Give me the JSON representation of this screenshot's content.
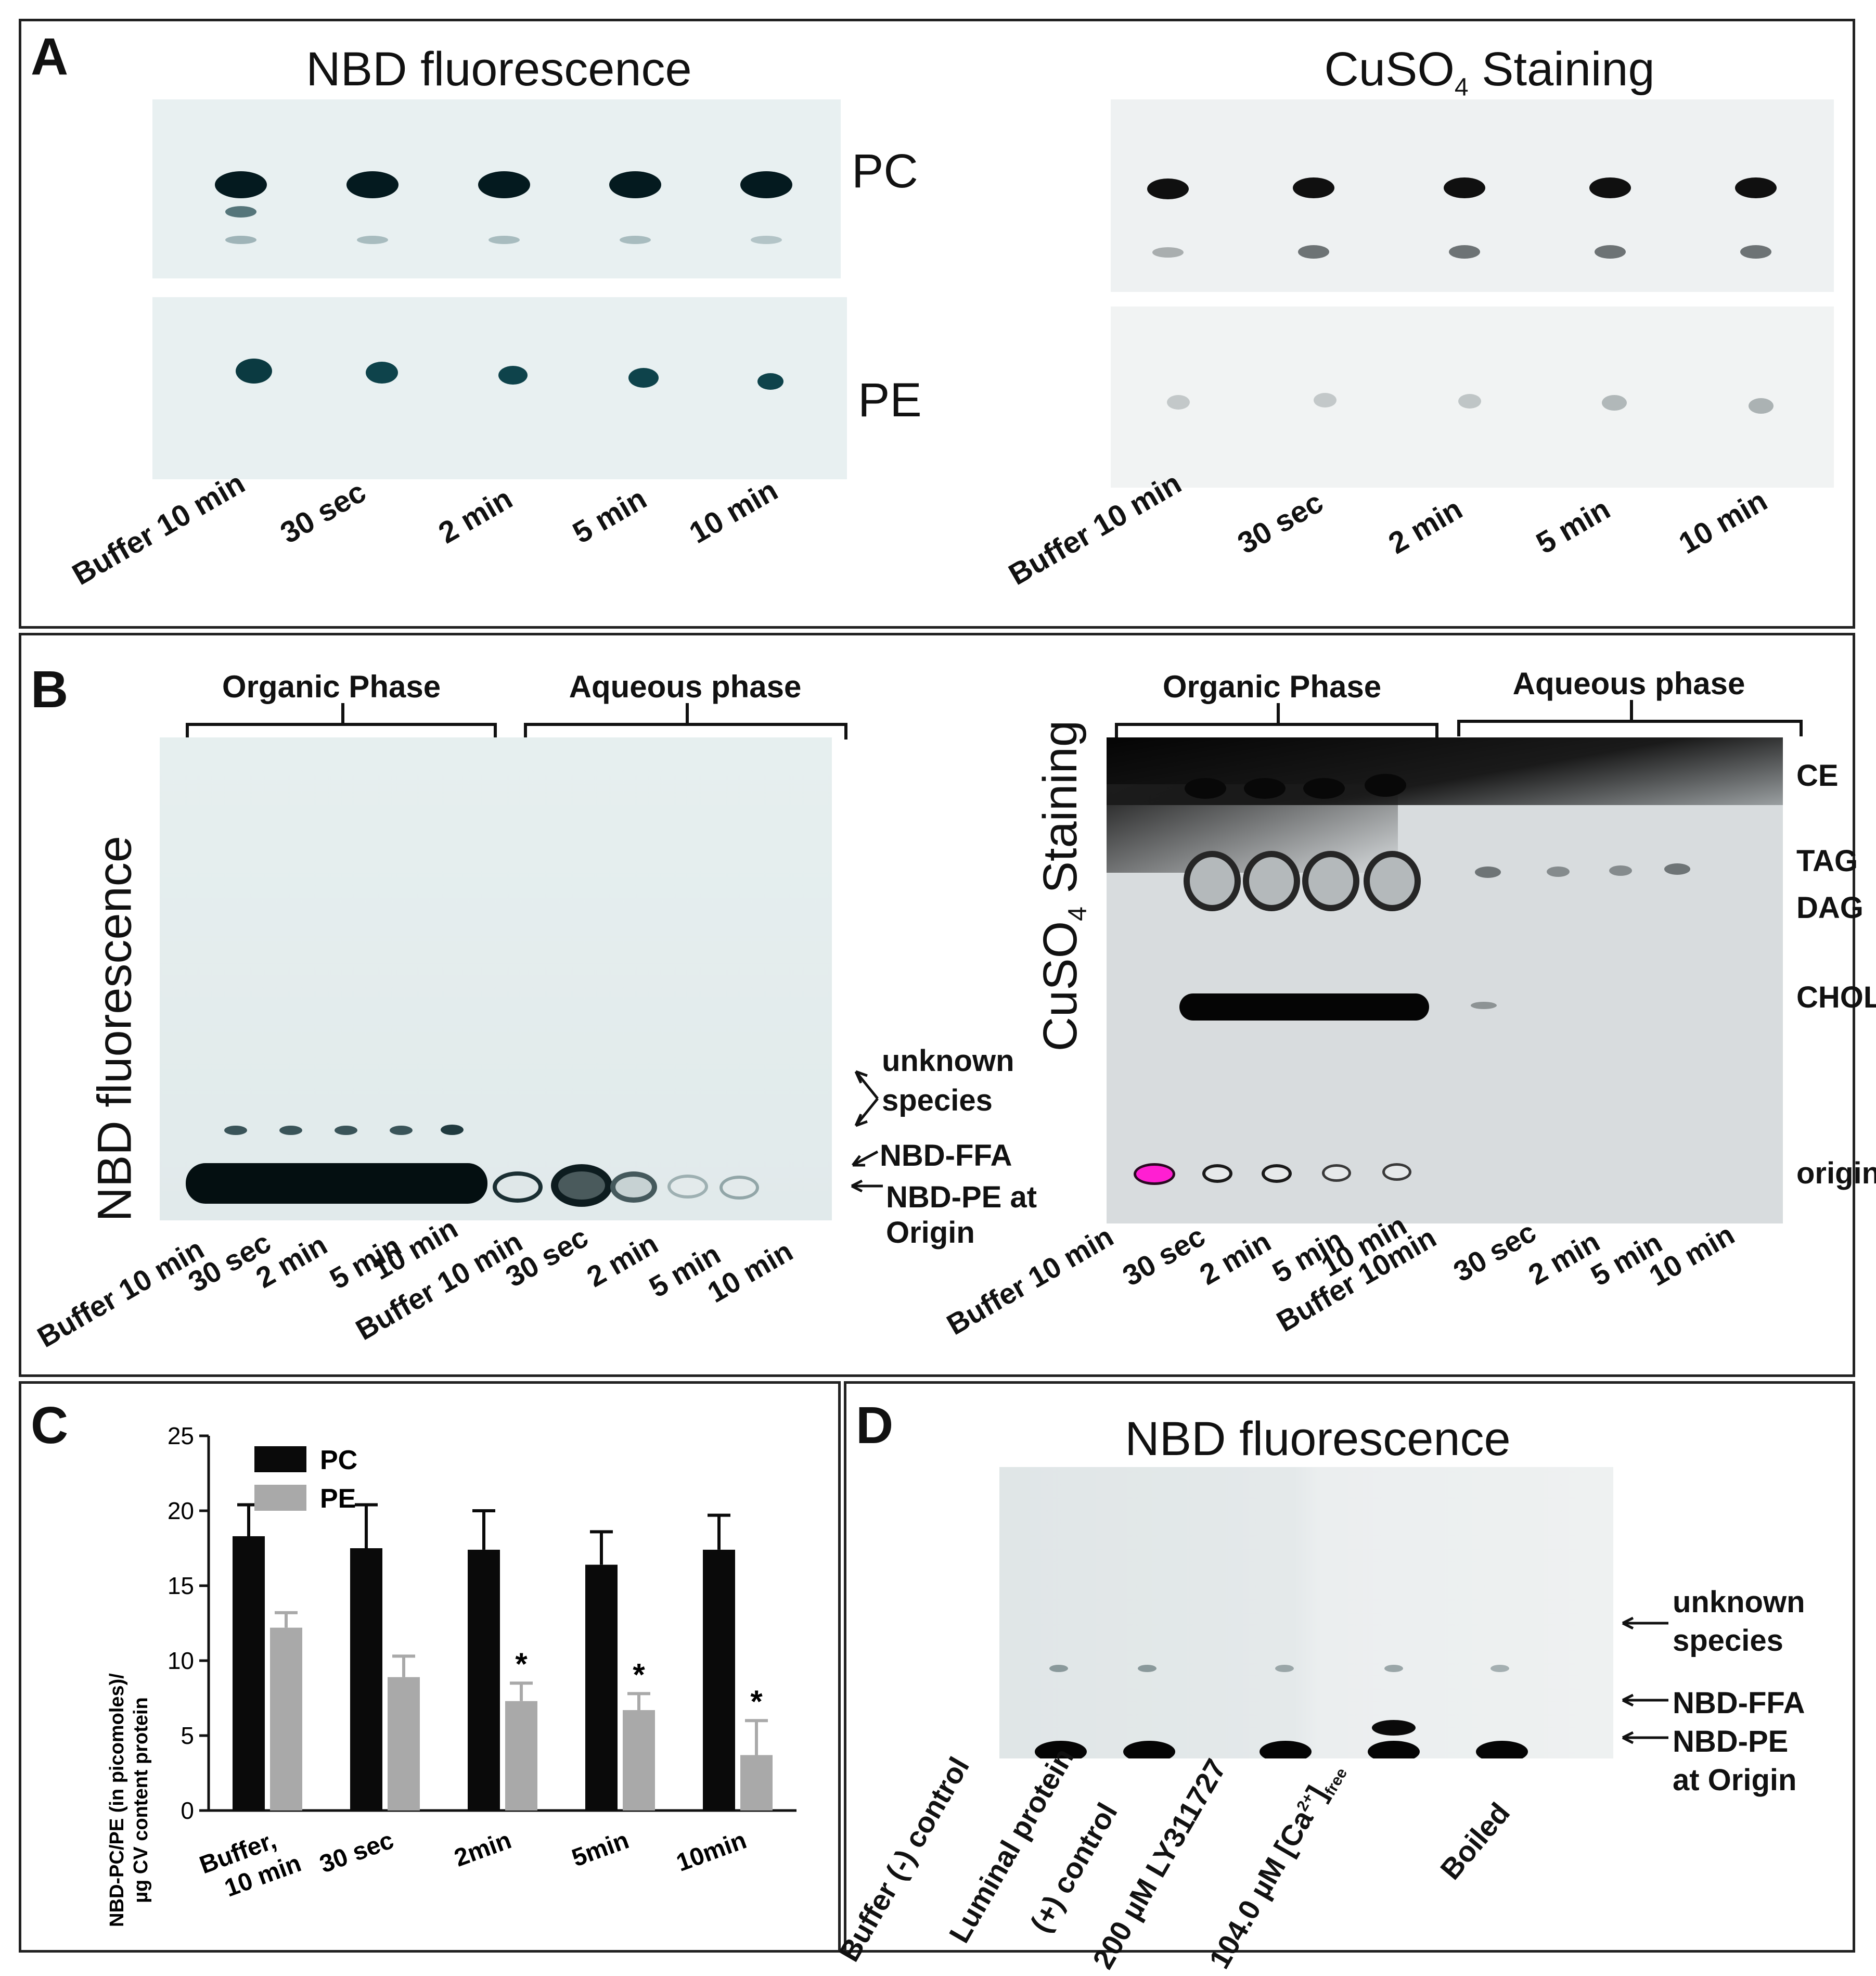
{
  "panelA": {
    "letter": "A",
    "left_title": "NBD fluorescence",
    "right_title_main": "CuSO",
    "right_title_sub": "4",
    "right_title_rest": " Staining",
    "row_labels": [
      "PC",
      "PE"
    ],
    "lanes": [
      "Buffer 10 min",
      "30 sec",
      "2 min",
      "5 min",
      "10 min"
    ]
  },
  "panelB": {
    "letter": "B",
    "phase_organic": "Organic Phase",
    "phase_aqueous": "Aqueous phase",
    "left_vertical_title": "NBD fluorescence",
    "right_vertical_main": "CuSO",
    "right_vertical_sub": "4",
    "right_vertical_rest": " Staining",
    "left_lanes": [
      "Buffer 10 min",
      "30 sec",
      "2 min",
      "5 min",
      "10 min",
      "Buffer 10 min",
      "30 sec",
      "2 min",
      "5 min",
      "10 min"
    ],
    "right_lanes": [
      "Buffer 10 min",
      "30 sec",
      "2 min",
      "5 min",
      "10 min",
      "Buffer 10min",
      "30 sec",
      "2 min",
      "5 min",
      "10 min"
    ],
    "left_annotations": [
      "unknown",
      "species",
      "NBD-FFA",
      "NBD-PE at",
      "Origin"
    ],
    "right_labels": [
      "CE",
      "TAG",
      "DAG",
      "CHOL",
      "origin"
    ]
  },
  "panelC": {
    "letter": "C",
    "chart_data": {
      "type": "bar",
      "ylabel_line1": "NBD-PC/PE (in picomoles)/",
      "ylabel_line2": "µg CV content protein",
      "ylim": [
        0,
        25
      ],
      "yticks": [
        "0",
        "5",
        "10",
        "15",
        "20",
        "25"
      ],
      "categories": [
        "Buffer,\n10 min",
        "30 sec",
        "2min",
        "5min",
        "10min"
      ],
      "category_lines": [
        [
          "Buffer,",
          "10 min"
        ],
        [
          "30 sec"
        ],
        [
          "2min"
        ],
        [
          "5min"
        ],
        [
          "10min"
        ]
      ],
      "series": [
        {
          "name": "PC",
          "color": "#0a0a0a",
          "values": [
            18.3,
            17.5,
            17.4,
            16.4,
            17.4
          ],
          "errors": [
            2.1,
            2.9,
            2.6,
            2.2,
            2.3
          ]
        },
        {
          "name": "PE",
          "color": "#a9a9a9",
          "values": [
            12.2,
            8.9,
            7.3,
            6.7,
            3.7
          ],
          "errors": [
            1.0,
            1.4,
            1.2,
            1.1,
            2.3
          ]
        }
      ],
      "significance": [
        false,
        false,
        true,
        true,
        true
      ],
      "significance_mark": "*"
    }
  },
  "panelD": {
    "letter": "D",
    "title": "NBD fluorescence",
    "lanes": [
      "Buffer (-) control",
      "Luminal protein",
      "(+) control",
      "200 µM LY311727",
      "104.0  µM [Ca",
      "Boiled"
    ],
    "ca_sup": "2+",
    "ca_after": "]",
    "ca_sub": "free",
    "annotations": [
      "unknown",
      "species",
      "NBD-FFA",
      "NBD-PE",
      "at Origin"
    ]
  },
  "colors": {
    "gel_bg": "#e9eff0",
    "nbd_spot": "#06262c",
    "cu_spot": "#0d0d0d",
    "magenta": "#ff1fd2"
  }
}
